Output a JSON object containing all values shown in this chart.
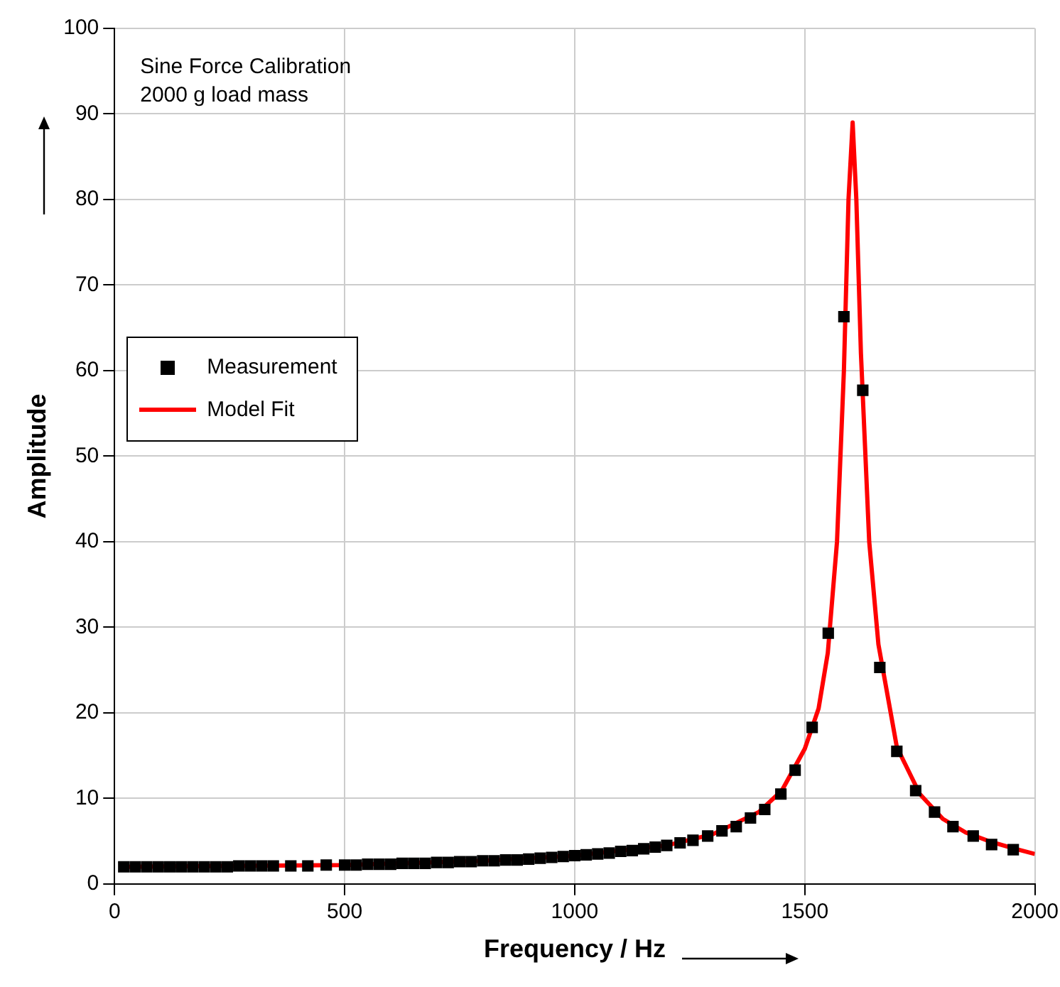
{
  "chart_data": {
    "type": "scatter",
    "xlabel": "Frequency / Hz",
    "ylabel": "Amplitude",
    "annotations": [
      "Sine Force Calibration",
      "2000 g load mass"
    ],
    "xlim": [
      0,
      2000
    ],
    "xticks": [
      0,
      500,
      1000,
      1500,
      2000
    ],
    "ylim": [
      0,
      100
    ],
    "yticks": [
      0,
      10,
      20,
      30,
      40,
      50,
      60,
      70,
      80,
      90,
      100
    ],
    "grid": true,
    "legend": "left",
    "series": [
      {
        "name": "Measurement",
        "type": "scatter",
        "marker": "square",
        "color": "#000000",
        "x": [
          20,
          45,
          70,
          95,
          120,
          145,
          170,
          195,
          220,
          245,
          270,
          295,
          320,
          345,
          383,
          420,
          460,
          500,
          525,
          550,
          575,
          600,
          625,
          650,
          675,
          700,
          725,
          750,
          775,
          800,
          825,
          850,
          875,
          900,
          925,
          950,
          975,
          1000,
          1025,
          1050,
          1075,
          1100,
          1125,
          1150,
          1175,
          1200,
          1229,
          1257,
          1289,
          1320,
          1351,
          1382,
          1413,
          1448,
          1479,
          1516,
          1551,
          1585,
          1626,
          1663,
          1700,
          1741,
          1782,
          1822,
          1866,
          1906,
          1953
        ],
        "values": [
          2.0,
          2.0,
          2.0,
          2.0,
          2.0,
          2.0,
          2.0,
          2.0,
          2.0,
          2.0,
          2.1,
          2.1,
          2.1,
          2.1,
          2.1,
          2.1,
          2.2,
          2.2,
          2.2,
          2.3,
          2.3,
          2.3,
          2.4,
          2.4,
          2.4,
          2.5,
          2.5,
          2.6,
          2.6,
          2.7,
          2.7,
          2.8,
          2.8,
          2.9,
          3.0,
          3.1,
          3.2,
          3.3,
          3.4,
          3.5,
          3.6,
          3.8,
          3.9,
          4.1,
          4.3,
          4.5,
          4.8,
          5.1,
          5.6,
          6.2,
          6.7,
          7.7,
          8.7,
          10.5,
          13.3,
          18.3,
          29.3,
          66.3,
          57.7,
          25.3,
          15.5,
          10.9,
          8.4,
          6.7,
          5.6,
          4.6,
          4.0
        ]
      },
      {
        "name": "Model Fit",
        "type": "line",
        "marker": "none",
        "line_style": "solid",
        "color": "#ff0000",
        "x": [
          20,
          500,
          800,
          1000,
          1200,
          1300,
          1400,
          1450,
          1500,
          1530,
          1550,
          1570,
          1585,
          1595,
          1604,
          1612,
          1622,
          1640,
          1660,
          1700,
          1750,
          1800,
          1850,
          1900,
          1950,
          2000
        ],
        "values": [
          2.0,
          2.2,
          2.7,
          3.3,
          4.5,
          5.8,
          8.4,
          10.9,
          15.8,
          20.5,
          27,
          40,
          60,
          80,
          89,
          80,
          62,
          40,
          28,
          16,
          10.5,
          7.6,
          6.0,
          5.0,
          4.2,
          3.5
        ]
      }
    ]
  }
}
